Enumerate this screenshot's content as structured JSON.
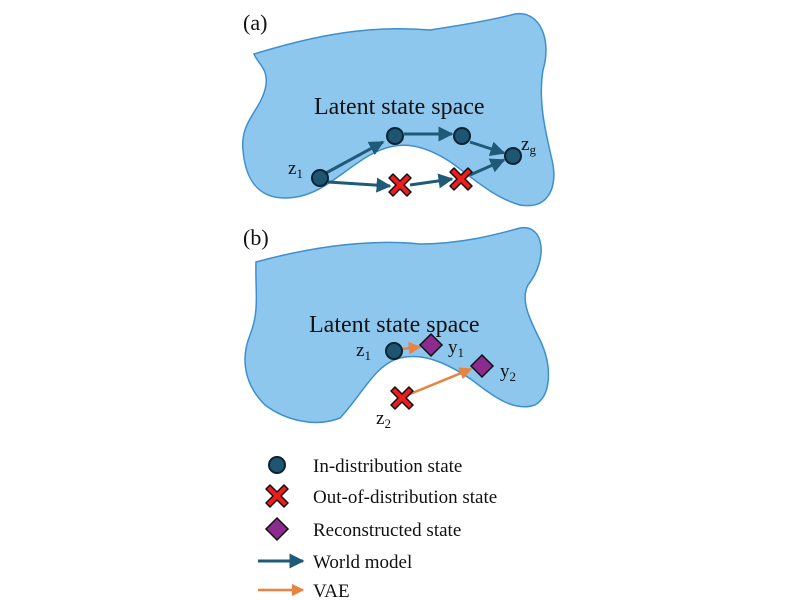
{
  "colors": {
    "region_fill": "#8ec7ee",
    "region_stroke": "#3d8fcd",
    "in_distribution": "#1d5672",
    "ood_fill": "#ee1c1c",
    "reconstructed_fill": "#8b2b8e",
    "world_model_arrow": "#1f5a78",
    "vae_arrow": "#e8823e"
  },
  "panel_a": {
    "label": "(a)",
    "region_title": "Latent state space",
    "z1": {
      "base": "z",
      "sub": "1"
    },
    "zg": {
      "base": "z",
      "sub": "g"
    }
  },
  "panel_b": {
    "label": "(b)",
    "region_title": "Latent state space",
    "z1": {
      "base": "z",
      "sub": "1"
    },
    "z2": {
      "base": "z",
      "sub": "2"
    },
    "y1": {
      "base": "y",
      "sub": "1"
    },
    "y2": {
      "base": "y",
      "sub": "2"
    }
  },
  "legend": {
    "in_distribution": "In-distribution state",
    "out_of_distribution": "Out-of-distribution state",
    "reconstructed": "Reconstructed state",
    "world_model": "World model",
    "vae": "VAE"
  }
}
